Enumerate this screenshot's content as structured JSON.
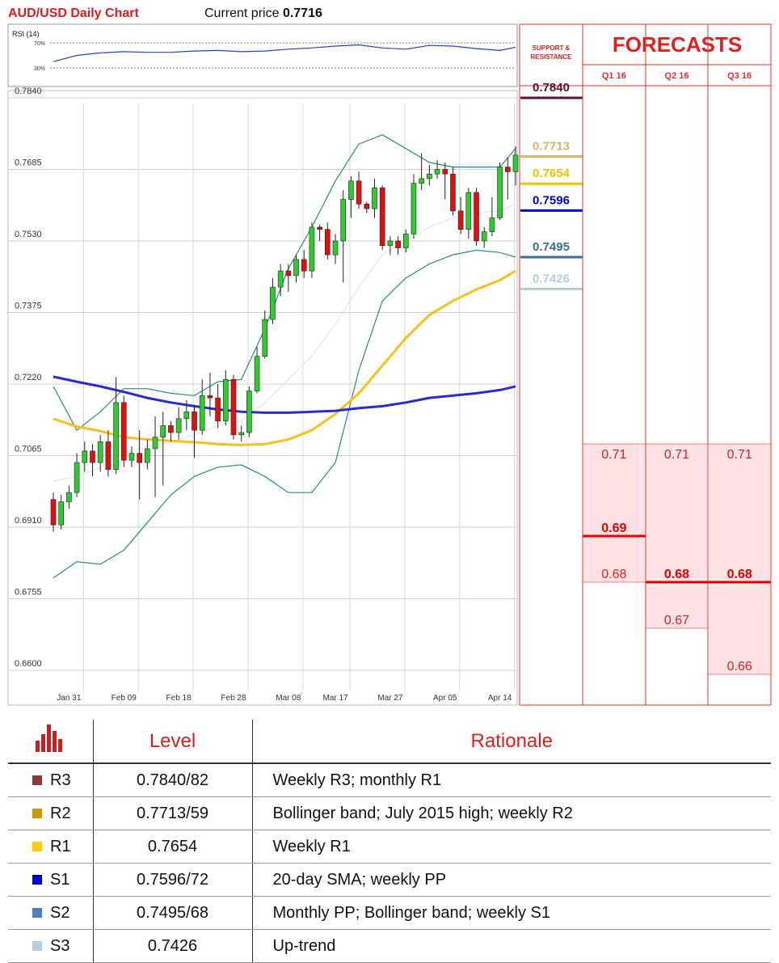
{
  "chart_data": {
    "type": "candlestick",
    "title": "AUD/USD Daily Chart",
    "current_price_label": "Current price",
    "current_price": 0.7716,
    "categories": [
      null,
      null,
      "Jan 31",
      null,
      null,
      null,
      null,
      null,
      null,
      "Feb 09",
      null,
      null,
      null,
      null,
      null,
      null,
      "Feb 18",
      null,
      null,
      null,
      null,
      null,
      null,
      "Feb 28",
      null,
      null,
      null,
      null,
      null,
      null,
      "Mar 08",
      null,
      null,
      null,
      null,
      null,
      "Mar 17",
      null,
      null,
      null,
      null,
      null,
      null,
      "Mar 27",
      null,
      null,
      null,
      null,
      null,
      null,
      "Apr 05",
      null,
      null,
      null,
      null,
      null,
      null,
      "Apr 14",
      null,
      null
    ],
    "open": [
      0.697,
      0.6915,
      0.6965,
      0.6985,
      0.705,
      0.7075,
      0.705,
      0.7095,
      0.7035,
      0.718,
      0.7055,
      0.707,
      0.705,
      0.708,
      0.7105,
      0.713,
      0.7115,
      0.7145,
      0.716,
      0.712,
      0.7195,
      0.719,
      0.714,
      0.723,
      0.711,
      0.7115,
      0.7205,
      0.728,
      0.736,
      0.743,
      0.7465,
      0.7455,
      0.749,
      0.7465,
      0.756,
      0.7555,
      0.75,
      0.753,
      0.762,
      0.766,
      0.761,
      0.76,
      0.7645,
      0.752,
      0.753,
      0.7515,
      0.7545,
      0.7655,
      0.7665,
      0.7675,
      0.7685,
      0.7675,
      0.7595,
      0.7555,
      0.7635,
      0.753,
      0.755,
      0.758,
      0.769,
      0.768
    ],
    "high": [
      0.6985,
      0.698,
      0.7,
      0.707,
      0.7095,
      0.709,
      0.711,
      0.712,
      0.7235,
      0.7195,
      0.7085,
      0.712,
      0.71,
      0.715,
      0.716,
      0.714,
      0.717,
      0.7185,
      0.7175,
      0.723,
      0.7245,
      0.722,
      0.725,
      0.724,
      0.713,
      0.7215,
      0.73,
      0.738,
      0.745,
      0.748,
      0.748,
      0.75,
      0.751,
      0.757,
      0.7565,
      0.757,
      0.7545,
      0.764,
      0.767,
      0.768,
      0.7615,
      0.7665,
      0.765,
      0.754,
      0.754,
      0.7555,
      0.7675,
      0.772,
      0.7695,
      0.7705,
      0.77,
      0.769,
      0.7625,
      0.7645,
      0.7645,
      0.756,
      0.7625,
      0.77,
      0.771,
      0.7735
    ],
    "low": [
      0.69,
      0.6905,
      0.695,
      0.6975,
      0.703,
      0.702,
      0.703,
      0.702,
      0.7025,
      0.704,
      0.704,
      0.697,
      0.7035,
      0.6975,
      0.7,
      0.7095,
      0.71,
      0.712,
      0.706,
      0.711,
      0.715,
      0.7125,
      0.713,
      0.71,
      0.7095,
      0.7105,
      0.72,
      0.7275,
      0.735,
      0.741,
      0.742,
      0.744,
      0.745,
      0.745,
      0.753,
      0.749,
      0.748,
      0.744,
      0.758,
      0.76,
      0.759,
      0.758,
      0.751,
      0.75,
      0.75,
      0.7505,
      0.7535,
      0.764,
      0.765,
      0.7665,
      0.762,
      0.7585,
      0.7545,
      0.7535,
      0.752,
      0.7515,
      0.754,
      0.7575,
      0.762,
      0.765
    ],
    "close": [
      0.6915,
      0.6965,
      0.6985,
      0.705,
      0.7075,
      0.705,
      0.7095,
      0.7035,
      0.718,
      0.7055,
      0.707,
      0.705,
      0.708,
      0.7105,
      0.713,
      0.7115,
      0.7145,
      0.716,
      0.712,
      0.7195,
      0.719,
      0.714,
      0.723,
      0.711,
      0.7115,
      0.7205,
      0.728,
      0.736,
      0.743,
      0.7465,
      0.7455,
      0.749,
      0.7465,
      0.756,
      0.7555,
      0.75,
      0.753,
      0.762,
      0.766,
      0.761,
      0.76,
      0.7645,
      0.752,
      0.753,
      0.7515,
      0.7545,
      0.7655,
      0.7665,
      0.7675,
      0.7685,
      0.7675,
      0.7595,
      0.7555,
      0.7635,
      0.753,
      0.755,
      0.758,
      0.769,
      0.768,
      0.7716
    ],
    "up_color": "#2ecc2e",
    "down_color": "#e01010",
    "ylim": [
      0.66,
      0.784
    ],
    "yticks": [
      {
        "value": 0.784,
        "label": "0.7840"
      },
      0.7685,
      {
        "value": 0.753,
        "label": "0.7530"
      },
      0.7375,
      {
        "value": 0.722,
        "label": "0.7220"
      },
      0.7065,
      {
        "value": 0.691,
        "label": "0.6910"
      },
      0.6755,
      {
        "value": 0.66,
        "label": "0.6600"
      }
    ],
    "grid": true,
    "overlays": [
      {
        "color": "#2a8a7a",
        "width": 1.2,
        "x": [
          0,
          3,
          6,
          9,
          12,
          15,
          18,
          21,
          24,
          27,
          30,
          33,
          36,
          39,
          42,
          45,
          48,
          51,
          54,
          57,
          59
        ],
        "values": [
          0.7215,
          0.712,
          0.716,
          0.721,
          0.721,
          0.72,
          0.7195,
          0.7225,
          0.723,
          0.734,
          0.747,
          0.756,
          0.766,
          0.774,
          0.776,
          0.773,
          0.77,
          0.769,
          0.769,
          0.769,
          0.773
        ]
      },
      {
        "color": "#2a8a7a",
        "width": 1.2,
        "x": [
          0,
          3,
          6,
          9,
          12,
          15,
          18,
          21,
          24,
          27,
          30,
          33,
          36,
          39,
          42,
          45,
          48,
          51,
          54,
          57,
          59
        ],
        "values": [
          0.68,
          0.6835,
          0.683,
          0.686,
          0.692,
          0.698,
          0.702,
          0.704,
          0.7045,
          0.702,
          0.6985,
          0.6985,
          0.705,
          0.725,
          0.74,
          0.745,
          0.748,
          0.75,
          0.751,
          0.7505,
          0.7495
        ]
      },
      {
        "color": "#e4e4e4",
        "width": 1.2,
        "x": [
          0,
          3,
          6,
          9,
          12,
          15,
          18,
          21,
          24,
          27,
          30,
          33,
          36,
          39,
          42,
          45,
          48,
          51,
          54,
          57,
          59
        ],
        "values": [
          0.701,
          0.702,
          0.704,
          0.707,
          0.7085,
          0.7095,
          0.711,
          0.713,
          0.714,
          0.718,
          0.723,
          0.728,
          0.735,
          0.743,
          0.75,
          0.753,
          0.756,
          0.758,
          0.759,
          0.7595,
          0.761
        ]
      },
      {
        "color": "#f5c020",
        "width": 3,
        "x": [
          0,
          3,
          6,
          9,
          12,
          15,
          18,
          21,
          24,
          27,
          30,
          33,
          36,
          39,
          42,
          45,
          48,
          51,
          54,
          57,
          59
        ],
        "values": [
          0.7145,
          0.7128,
          0.7118,
          0.7105,
          0.71,
          0.7097,
          0.7094,
          0.709,
          0.7088,
          0.709,
          0.71,
          0.712,
          0.7155,
          0.72,
          0.726,
          0.732,
          0.737,
          0.74,
          0.7425,
          0.7445,
          0.7465
        ]
      },
      {
        "color": "#2a2ad0",
        "width": 3,
        "x": [
          0,
          3,
          6,
          9,
          12,
          15,
          18,
          21,
          24,
          27,
          30,
          33,
          36,
          39,
          42,
          45,
          48,
          51,
          54,
          57,
          59
        ],
        "values": [
          0.7236,
          0.7225,
          0.7215,
          0.7203,
          0.719,
          0.718,
          0.7172,
          0.7165,
          0.716,
          0.7158,
          0.7158,
          0.716,
          0.7162,
          0.7168,
          0.7172,
          0.718,
          0.719,
          0.7195,
          0.72,
          0.7207,
          0.7215
        ]
      }
    ],
    "rsi": {
      "label": "RSI (14)",
      "color": "#2a40c0",
      "x": [
        0,
        3,
        6,
        9,
        12,
        15,
        18,
        21,
        24,
        27,
        30,
        33,
        36,
        39,
        42,
        45,
        48,
        51,
        54,
        57,
        59
      ],
      "values": [
        40,
        50,
        54,
        56,
        55,
        55,
        57,
        58,
        56,
        57,
        60,
        62,
        65,
        67,
        62,
        60,
        66,
        65,
        61,
        58,
        63
      ],
      "ylim": [
        5,
        95
      ],
      "yticks": [
        {
          "value": 70,
          "label": "70%"
        },
        {
          "value": 30,
          "label": "30%"
        }
      ]
    },
    "levels_title": "SUPPORT & RESISTANCE",
    "levels": {
      "values": [
        0.784,
        0.7713,
        0.7654,
        0.7596,
        0.7495,
        0.7426
      ],
      "value_labels": [
        "0.7840",
        "0.7713",
        "0.7654",
        "0.7596",
        "0.7495",
        "0.7426"
      ],
      "colors": [
        "#5a1030",
        "#d6b46e",
        "#f2c200",
        "#0000c8",
        "#3a7090",
        "#b5ccd6"
      ]
    },
    "forecasts": {
      "title": "FORECASTS",
      "ylim": [
        0.66,
        0.71
      ],
      "quarters": [
        {
          "name": "Q1 16",
          "high": 0.71,
          "main": 0.69,
          "low": 0.68
        },
        {
          "name": "Q2 16",
          "high": 0.71,
          "main": 0.68,
          "low": 0.67
        },
        {
          "name": "Q3 16",
          "high": 0.71,
          "main": 0.68,
          "low": 0.66
        }
      ]
    }
  },
  "table": {
    "header": {
      "level": "Level",
      "rationale": "Rationale"
    },
    "rows": [
      {
        "code": "R3",
        "color": "#953735",
        "level": "0.7840/82",
        "rationale": "Weekly R3; monthly R1"
      },
      {
        "code": "R2",
        "color": "#cc9900",
        "level": "0.7713/59",
        "rationale": "Bollinger band; July 2015 high; weekly R2"
      },
      {
        "code": "R1",
        "color": "#ffcc00",
        "level": "0.7654",
        "rationale": "Weekly R1"
      },
      {
        "code": "S1",
        "color": "#0000cc",
        "level": "0.7596/72",
        "rationale": "20-day SMA; weekly PP"
      },
      {
        "code": "S2",
        "color": "#4f81bd",
        "level": "0.7495/68",
        "rationale": "Monthly PP; Bollinger band; weekly S1"
      },
      {
        "code": "S3",
        "color": "#b8cce4",
        "level": "0.7426",
        "rationale": "Up-trend"
      }
    ]
  }
}
